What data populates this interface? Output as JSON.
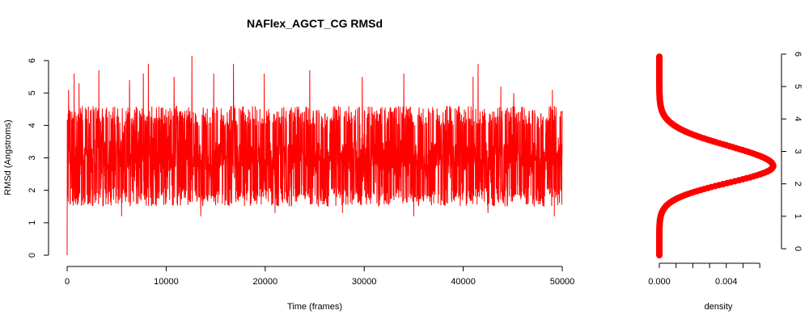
{
  "chart_data": [
    {
      "type": "line",
      "title": "NAFlex_AGCT_CG RMSd",
      "xlabel": "Time (frames)",
      "ylabel": "RMSd (Angstroms)",
      "xlim": [
        0,
        50000
      ],
      "ylim": [
        0,
        6
      ],
      "x_ticks": [
        0,
        10000,
        20000,
        30000,
        40000,
        50000
      ],
      "y_ticks": [
        0,
        1,
        2,
        3,
        4,
        5,
        6
      ],
      "series": [
        {
          "color": "#ff0000",
          "description_stats": {
            "start": 0.0,
            "typical_low": 1.5,
            "typical_high": 4.6,
            "mean": 3.0,
            "max": 6.15
          },
          "peaks": [
            {
              "x": 150,
              "y": 5.1
            },
            {
              "x": 700,
              "y": 5.6
            },
            {
              "x": 1200,
              "y": 5.3
            },
            {
              "x": 3200,
              "y": 5.7
            },
            {
              "x": 6300,
              "y": 5.4
            },
            {
              "x": 7700,
              "y": 5.6
            },
            {
              "x": 8200,
              "y": 5.9
            },
            {
              "x": 10800,
              "y": 5.5
            },
            {
              "x": 12600,
              "y": 6.15
            },
            {
              "x": 14800,
              "y": 5.6
            },
            {
              "x": 16800,
              "y": 5.9
            },
            {
              "x": 19900,
              "y": 5.6
            },
            {
              "x": 24500,
              "y": 5.7
            },
            {
              "x": 29800,
              "y": 5.5
            },
            {
              "x": 34000,
              "y": 5.6
            },
            {
              "x": 41000,
              "y": 5.5
            },
            {
              "x": 41500,
              "y": 5.9
            },
            {
              "x": 43800,
              "y": 5.2
            },
            {
              "x": 45100,
              "y": 5.0
            },
            {
              "x": 49000,
              "y": 5.1
            }
          ],
          "troughs": [
            {
              "x": 5500,
              "y": 1.2
            },
            {
              "x": 13500,
              "y": 1.2
            },
            {
              "x": 21000,
              "y": 1.3
            },
            {
              "x": 27800,
              "y": 1.3
            },
            {
              "x": 35000,
              "y": 1.2
            },
            {
              "x": 42500,
              "y": 1.3
            },
            {
              "x": 49200,
              "y": 1.2
            }
          ]
        }
      ]
    },
    {
      "type": "line",
      "title": "",
      "xlabel": "density",
      "ylabel": "",
      "xlim": [
        0,
        0.0058
      ],
      "ylim": [
        0,
        6
      ],
      "x_ticks": [
        0.0,
        0.002,
        0.004
      ],
      "x_tick_labels": [
        "0.000",
        "",
        "0.004"
      ],
      "y_ticks": [
        0,
        1,
        2,
        3,
        4,
        5,
        6
      ],
      "series": [
        {
          "color": "#ff0000",
          "marker": "circle",
          "density_peak": {
            "rmsd": 2.75,
            "density": 0.0068
          },
          "y_range": [
            0.0,
            6.15
          ]
        }
      ]
    }
  ]
}
